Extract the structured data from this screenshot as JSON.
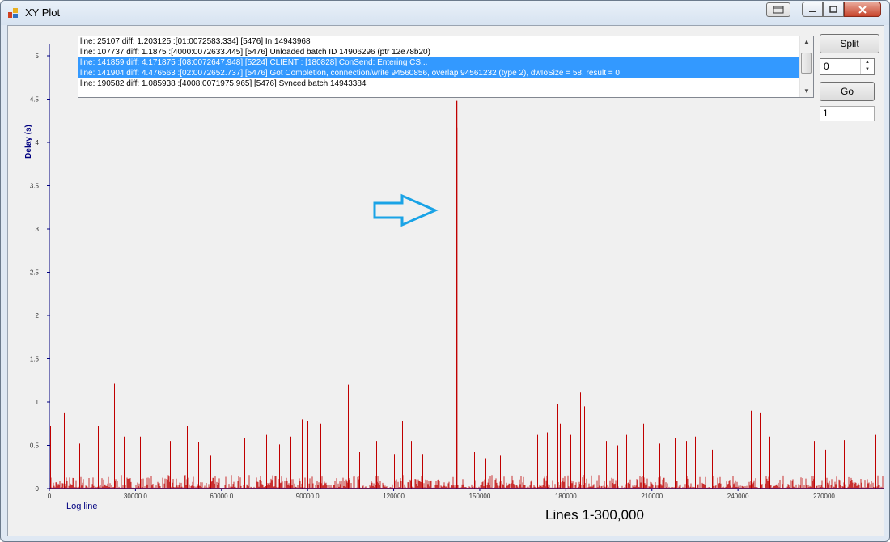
{
  "window": {
    "title": "XY Plot"
  },
  "log": {
    "lines": [
      {
        "text": "line: 25107 diff: 1.203125  :[01:0072583.334] [5476] In 14943968",
        "selected": false
      },
      {
        "text": "line: 107737 diff: 1.1875  :[4000:0072633.445] [5476] Unloaded batch ID 14906296 (ptr 12e78b20)",
        "selected": false
      },
      {
        "text": "line: 141859 diff: 4.171875  :[08:0072647.948] [5224] CLIENT : [180828] ConSend: Entering CS...",
        "selected": true
      },
      {
        "text": "line: 141904 diff: 4.476563  :[02:0072652.737] [5476] Got Completion, connection/write 94560856, overlap 94561232 (type 2), dwIoSize = 58, result = 0",
        "selected": true
      },
      {
        "text": "line: 190582 diff: 1.085938  :[4008:0071975.965] [5476] Synced batch 14943384",
        "selected": false
      }
    ]
  },
  "controls": {
    "split_label": "Split",
    "spin_value": "0",
    "go_label": "Go",
    "text_value": "1"
  },
  "annotation": {
    "caption": "Lines 1-300,000"
  },
  "colors": {
    "series": "#c00000",
    "axis": "#000080",
    "arrow": "#1aa3e6"
  },
  "chart_data": {
    "type": "bar",
    "ylabel": "Delay (s)",
    "xlabel": "Log line",
    "ylim": [
      0,
      5
    ],
    "xlim": [
      0,
      291000
    ],
    "y_ticks": [
      "0",
      "0.5",
      "1",
      "1.5",
      "2",
      "2.5",
      "3",
      "3.5",
      "4",
      "4.5",
      "5"
    ],
    "x_ticks": [
      "0",
      "30000.0",
      "60000.0",
      "90000.0",
      "120000",
      "150000",
      "180000",
      "210000",
      "240000",
      "270000"
    ],
    "x_tick_values": [
      0,
      30000,
      60000,
      90000,
      120000,
      150000,
      180000,
      210000,
      240000,
      270000
    ],
    "series": [
      {
        "x": [
          300,
          5000,
          10500,
          17000,
          22500,
          26000,
          31500,
          35000,
          38000,
          42000,
          48000,
          52000,
          56000,
          60000,
          64500,
          68000,
          72000,
          75500,
          80000,
          84000,
          88000,
          90000,
          94500,
          97000,
          100000,
          104000,
          108000,
          114000,
          120000,
          123000,
          126000,
          130000,
          134000,
          138500,
          141859,
          141904,
          148000,
          152000,
          157000,
          162000,
          170000,
          173500,
          177000,
          178000,
          181500,
          185000,
          186500,
          190000,
          194000,
          198000,
          201000,
          203500,
          207000,
          212500,
          218000,
          222000,
          225000,
          227000,
          231000,
          234500,
          240500,
          244500,
          247500,
          251000,
          258000,
          261000,
          266500,
          270500,
          277000,
          283000,
          288000
        ],
        "y": [
          0.72,
          0.88,
          0.52,
          0.72,
          1.21,
          0.6,
          0.6,
          0.58,
          0.72,
          0.55,
          0.72,
          0.54,
          0.38,
          0.55,
          0.62,
          0.58,
          0.45,
          0.62,
          0.51,
          0.6,
          0.8,
          0.78,
          0.75,
          0.56,
          1.05,
          1.2,
          0.42,
          0.55,
          0.4,
          0.78,
          0.55,
          0.4,
          0.5,
          0.62,
          4.17,
          4.48,
          0.42,
          0.35,
          0.38,
          0.5,
          0.62,
          0.65,
          0.98,
          0.75,
          0.62,
          1.11,
          0.95,
          0.56,
          0.55,
          0.5,
          0.62,
          0.8,
          0.75,
          0.52,
          0.58,
          0.55,
          0.6,
          0.58,
          0.45,
          0.45,
          0.66,
          0.9,
          0.88,
          0.6,
          0.58,
          0.6,
          0.55,
          0.45,
          0.56,
          0.6,
          0.62
        ]
      }
    ]
  }
}
